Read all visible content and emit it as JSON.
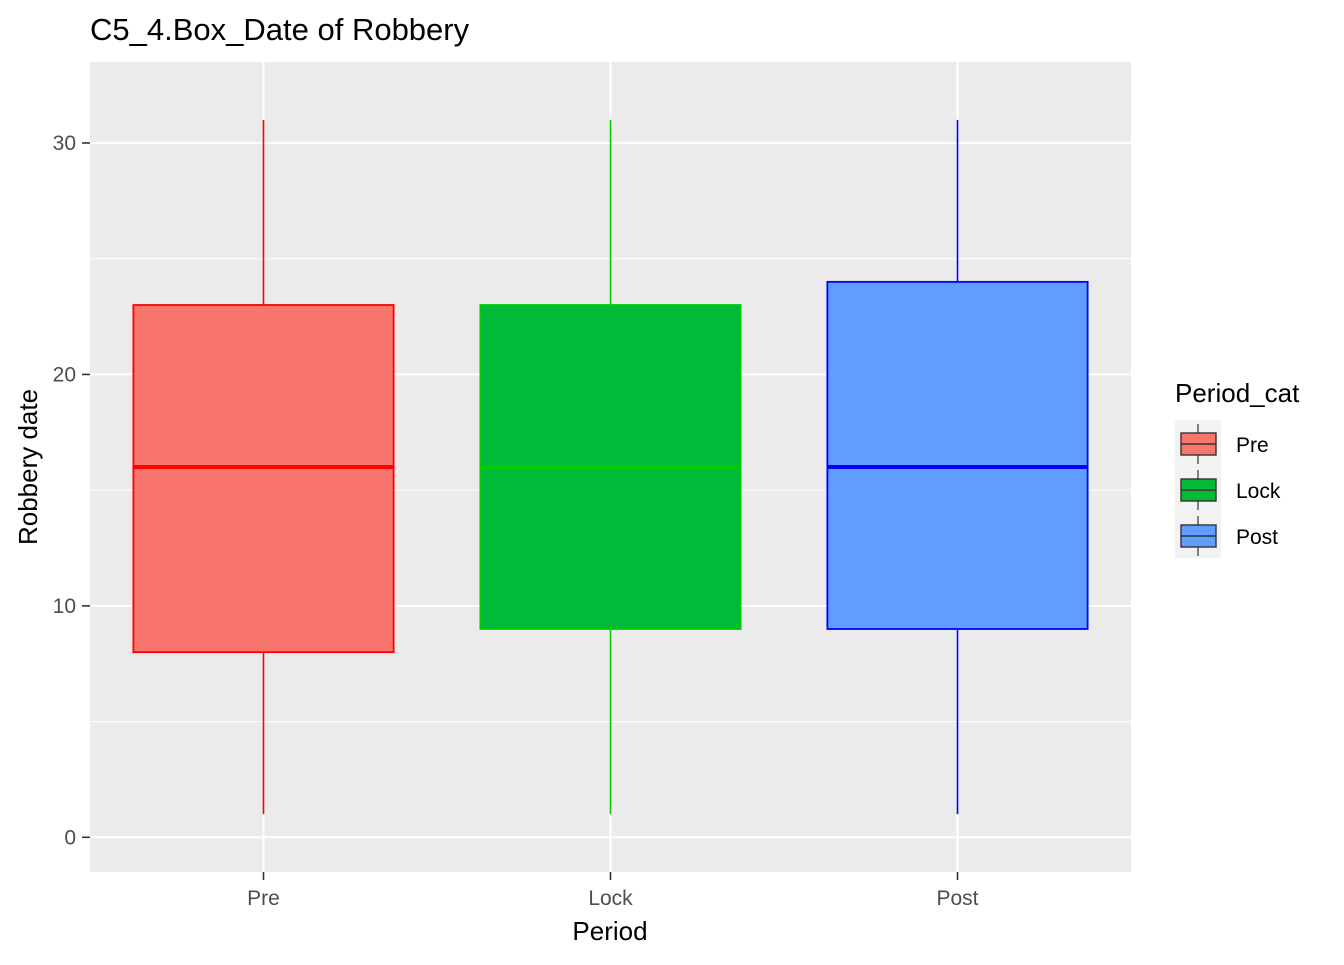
{
  "chart_data": {
    "type": "box",
    "title": "C5_4.Box_Date of Robbery",
    "xlabel": "Period",
    "ylabel": "Robbery date",
    "ylim": [
      -1.5,
      33.5
    ],
    "y_ticks": [
      0,
      10,
      20,
      30
    ],
    "y_tick_labels": [
      "0",
      "10",
      "20",
      "30"
    ],
    "categories": [
      "Pre",
      "Lock",
      "Post"
    ],
    "grid": true,
    "legend": {
      "title": "Period_cat",
      "position": "right",
      "entries": [
        "Pre",
        "Lock",
        "Post"
      ]
    },
    "series": [
      {
        "category": "Pre",
        "min": 1,
        "q1": 8,
        "median": 16,
        "q3": 23,
        "max": 31,
        "fill": "#F8766D",
        "line": "#FF0000"
      },
      {
        "category": "Lock",
        "min": 1,
        "q1": 9,
        "median": 16,
        "q3": 23,
        "max": 31,
        "fill": "#00BA38",
        "line": "#00CC00"
      },
      {
        "category": "Post",
        "min": 1,
        "q1": 9,
        "median": 16,
        "q3": 24,
        "max": 31,
        "fill": "#619CFF",
        "line": "#0000FF"
      }
    ]
  },
  "colors": {
    "panel_background": "#EBEBEB",
    "grid_line": "#FFFFFF",
    "tick_mark": "#333333"
  }
}
